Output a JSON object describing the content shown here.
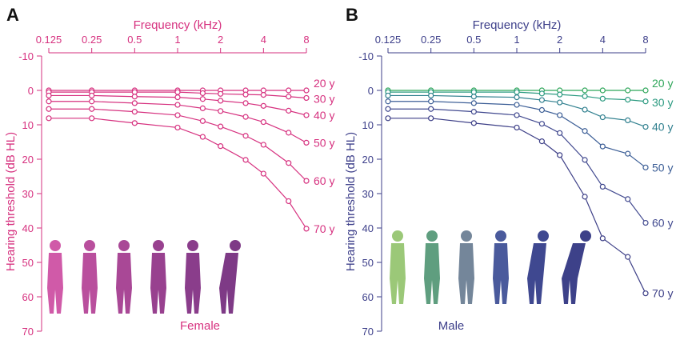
{
  "chart_data": [
    {
      "panel_label": "A",
      "type": "line",
      "xlabel": "Frequency (kHz)",
      "ylabel": "Hearing threshold (dB HL)",
      "x_scale": "log",
      "x_axis_position": "top",
      "x_ticks": [
        "0.125",
        "0.25",
        "0.5",
        "1",
        "2",
        "4",
        "8"
      ],
      "x": [
        0.125,
        0.25,
        0.5,
        1,
        1.5,
        2,
        3,
        4,
        6,
        8
      ],
      "ylim": [
        -10,
        70
      ],
      "y_inverted": true,
      "y_ticks": [
        "-10",
        "0",
        "10",
        "20",
        "30",
        "40",
        "50",
        "60",
        "70"
      ],
      "grid": false,
      "group_label": "Female",
      "axis_color": "#d6317f",
      "series": [
        {
          "name": "20 y",
          "color": "#d6317f",
          "values": [
            0,
            0,
            0,
            0,
            0,
            0,
            0,
            0,
            0,
            0
          ]
        },
        {
          "name": "30 y",
          "color": "#d6317f",
          "values": [
            0.5,
            0.5,
            0.5,
            0.5,
            0.8,
            1,
            1.2,
            1.3,
            1.8,
            2.2
          ]
        },
        {
          "name": "40 y",
          "color": "#d6317f",
          "values": [
            1.5,
            1.5,
            1.8,
            2,
            2.5,
            3,
            3.7,
            4.5,
            5.9,
            7.2
          ]
        },
        {
          "name": "50 y",
          "color": "#d6317f",
          "values": [
            3.2,
            3.2,
            3.7,
            4.2,
            5.2,
            6,
            7.7,
            9.2,
            12.3,
            15.2
          ]
        },
        {
          "name": "60 y",
          "color": "#d6317f",
          "values": [
            5.4,
            5.4,
            6.2,
            7.2,
            8.9,
            10.5,
            13.2,
            15.8,
            21.1,
            26.3
          ]
        },
        {
          "name": "70 y",
          "color": "#d6317f",
          "values": [
            8.1,
            8.1,
            9.5,
            10.8,
            13.5,
            16.2,
            20.2,
            24.2,
            32.2,
            40.2
          ]
        }
      ],
      "figure_colors": [
        "#d05aa8",
        "#b94f9d",
        "#a94896",
        "#98418f",
        "#8a3d8b",
        "#7e3a86"
      ]
    },
    {
      "panel_label": "B",
      "type": "line",
      "xlabel": "Frequency (kHz)",
      "ylabel": "Hearing threshold (dB HL)",
      "x_scale": "log",
      "x_axis_position": "top",
      "x_ticks": [
        "0.125",
        "0.25",
        "0.5",
        "1",
        "2",
        "4",
        "8"
      ],
      "x": [
        0.125,
        0.25,
        0.5,
        1,
        1.5,
        2,
        3,
        4,
        6,
        8
      ],
      "ylim": [
        -10,
        70
      ],
      "y_inverted": true,
      "y_ticks": [
        "-10",
        "0",
        "10",
        "20",
        "30",
        "40",
        "50",
        "60",
        "70"
      ],
      "grid": false,
      "group_label": "Male",
      "axis_color": "#3d3f8a",
      "series": [
        {
          "name": "20 y",
          "color": "#2fa65a",
          "values": [
            0,
            0,
            0,
            0,
            0,
            0,
            0,
            0,
            0,
            0
          ]
        },
        {
          "name": "30 y",
          "color": "#2b9a80",
          "values": [
            0.5,
            0.5,
            0.5,
            0.5,
            0.9,
            1.2,
            1.7,
            2.4,
            2.7,
            3.2
          ]
        },
        {
          "name": "40 y",
          "color": "#2f7f8e",
          "values": [
            1.5,
            1.5,
            1.8,
            2,
            2.8,
            3.5,
            5.6,
            7.8,
            8.7,
            10.6
          ]
        },
        {
          "name": "50 y",
          "color": "#3c5e96",
          "values": [
            3.2,
            3.2,
            3.7,
            4.2,
            5.7,
            7.2,
            11.8,
            16.3,
            18.4,
            22.4
          ]
        },
        {
          "name": "60 y",
          "color": "#41498f",
          "values": [
            5.4,
            5.4,
            6.2,
            7.2,
            9.7,
            12.4,
            20.2,
            28,
            31.6,
            38.5
          ]
        },
        {
          "name": "70 y",
          "color": "#3d3f87",
          "values": [
            8.1,
            8.1,
            9.5,
            10.8,
            14.8,
            18.8,
            30.9,
            43,
            48.4,
            59
          ]
        }
      ],
      "figure_colors": [
        "#9bc878",
        "#5f9e7f",
        "#74869a",
        "#4a5a9c",
        "#3f4890",
        "#3d4189"
      ]
    }
  ]
}
